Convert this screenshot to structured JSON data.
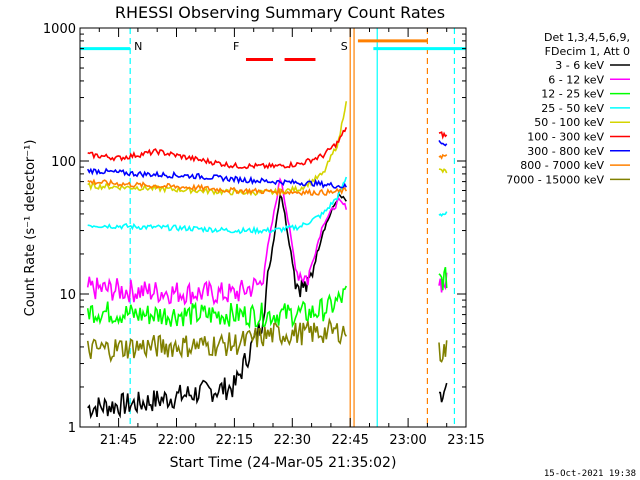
{
  "chart_data": {
    "type": "line",
    "title": "RHESSI Observing Summary Count Rates",
    "xlabel": "Start Time (24-Mar-05 21:35:02)",
    "ylabel": "Count Rate (s⁻¹ detector⁻¹)",
    "y_scale": "log",
    "ylim": [
      1,
      1000
    ],
    "xlim": [
      "21:35",
      "23:15"
    ],
    "x_ticks": [
      "21:45",
      "22:00",
      "22:15",
      "22:30",
      "22:45",
      "23:00",
      "23:15"
    ],
    "y_ticks": [
      "1",
      "10",
      "100",
      "1000"
    ],
    "legend_header": [
      "Det 1,3,4,5,6,9,",
      "FDecim 1, Att 0"
    ],
    "legend_position": "right",
    "series": [
      {
        "name": "3 - 6 keV",
        "color": "#000000",
        "x": [
          "21:37",
          "21:50",
          "22:05",
          "22:15",
          "22:22",
          "22:27",
          "22:31",
          "22:34",
          "22:38",
          "22:42",
          "22:44",
          "23:08",
          "23:10"
        ],
        "values": [
          1.4,
          1.5,
          1.8,
          2.0,
          6,
          60,
          12,
          11,
          30,
          55,
          50,
          1.5,
          1.8
        ]
      },
      {
        "name": "6 - 12 keV",
        "color": "#ff00ff",
        "x": [
          "21:37",
          "21:50",
          "22:05",
          "22:15",
          "22:22",
          "22:27",
          "22:31",
          "22:34",
          "22:38",
          "22:42",
          "22:44",
          "23:08",
          "23:10"
        ],
        "values": [
          11,
          10.5,
          10.2,
          10,
          12,
          78,
          15,
          13,
          34,
          50,
          45,
          12.5,
          12
        ]
      },
      {
        "name": "12 - 25 keV",
        "color": "#00ff00",
        "x": [
          "21:37",
          "21:50",
          "22:05",
          "22:15",
          "22:25",
          "22:35",
          "22:40",
          "22:44",
          "23:08",
          "23:10"
        ],
        "values": [
          7.5,
          7,
          7,
          7,
          7,
          7.2,
          8,
          10,
          12.8,
          13
        ]
      },
      {
        "name": "25 - 50 keV",
        "color": "#00ffff",
        "x": [
          "21:37",
          "21:50",
          "22:05",
          "22:15",
          "22:25",
          "22:32",
          "22:38",
          "22:42",
          "22:44",
          "23:08",
          "23:10"
        ],
        "values": [
          33,
          32,
          31,
          30,
          30,
          32,
          40,
          55,
          75,
          40,
          40
        ]
      },
      {
        "name": "50 - 100 keV",
        "color": "#d4d400",
        "x": [
          "21:37",
          "21:50",
          "22:05",
          "22:15",
          "22:25",
          "22:32",
          "22:38",
          "22:42",
          "22:44",
          "23:08",
          "23:10"
        ],
        "values": [
          65,
          63,
          60,
          58,
          58,
          62,
          80,
          140,
          290,
          85,
          83
        ]
      },
      {
        "name": "100 - 300 keV",
        "color": "#ff0000",
        "x": [
          "21:37",
          "21:45",
          "21:55",
          "22:05",
          "22:15",
          "22:25",
          "22:32",
          "22:38",
          "22:42",
          "22:44",
          "23:08",
          "23:10"
        ],
        "values": [
          112,
          105,
          118,
          103,
          92,
          91,
          95,
          110,
          140,
          180,
          160,
          155
        ]
      },
      {
        "name": "300 - 800 keV",
        "color": "#0000ff",
        "x": [
          "21:37",
          "21:50",
          "22:05",
          "22:15",
          "22:25",
          "22:35",
          "22:40",
          "22:44",
          "23:08",
          "23:10"
        ],
        "values": [
          85,
          80,
          77,
          73,
          70,
          68,
          66,
          64,
          140,
          135
        ]
      },
      {
        "name": "800 - 7000 keV",
        "color": "#ff8000",
        "x": [
          "21:37",
          "21:50",
          "22:05",
          "22:15",
          "22:25",
          "22:35",
          "22:40",
          "22:44",
          "23:08",
          "23:10"
        ],
        "values": [
          70,
          66,
          63,
          60,
          59,
          58,
          58,
          60,
          110,
          108
        ]
      },
      {
        "name": "7000 - 15000 keV",
        "color": "#808000",
        "x": [
          "21:37",
          "21:50",
          "22:05",
          "22:15",
          "22:25",
          "22:35",
          "22:40",
          "22:44",
          "23:08",
          "23:10"
        ],
        "values": [
          3.8,
          4.0,
          4.1,
          4.2,
          5.0,
          5.1,
          5.2,
          5.3,
          3.6,
          3.8
        ]
      }
    ],
    "annotations": [
      {
        "label": "N",
        "color": "#00ffff",
        "at": "21:48"
      },
      {
        "label": "F",
        "color": "#ff0000",
        "at": "22:17"
      },
      {
        "label": "S",
        "color": "#ff8000",
        "at": "22:45"
      }
    ],
    "flag_bars": [
      {
        "color": "#00ffff",
        "from": "21:35",
        "to": "21:48",
        "level": 700
      },
      {
        "color": "#ff0000",
        "from": "22:18",
        "to": "22:25",
        "level": 580
      },
      {
        "color": "#ff0000",
        "from": "22:28",
        "to": "22:36",
        "level": 580
      },
      {
        "color": "#ff8000",
        "from": "22:47",
        "to": "23:05",
        "level": 800
      },
      {
        "color": "#00ffff",
        "from": "22:51",
        "to": "23:15",
        "level": 700
      }
    ],
    "vertical_lines": [
      {
        "color": "#00ffff",
        "at": "21:48",
        "style": "dashed"
      },
      {
        "color": "#ff8000",
        "at": "22:45",
        "style": "solid"
      },
      {
        "color": "#ff8000",
        "at": "22:46",
        "style": "solid"
      },
      {
        "color": "#00ffff",
        "at": "22:52",
        "style": "solid"
      },
      {
        "color": "#ff8000",
        "at": "23:05",
        "style": "dashed"
      },
      {
        "color": "#00ffff",
        "at": "23:12",
        "style": "dashed"
      }
    ]
  },
  "footer_date": "15-Oct-2021 19:38"
}
